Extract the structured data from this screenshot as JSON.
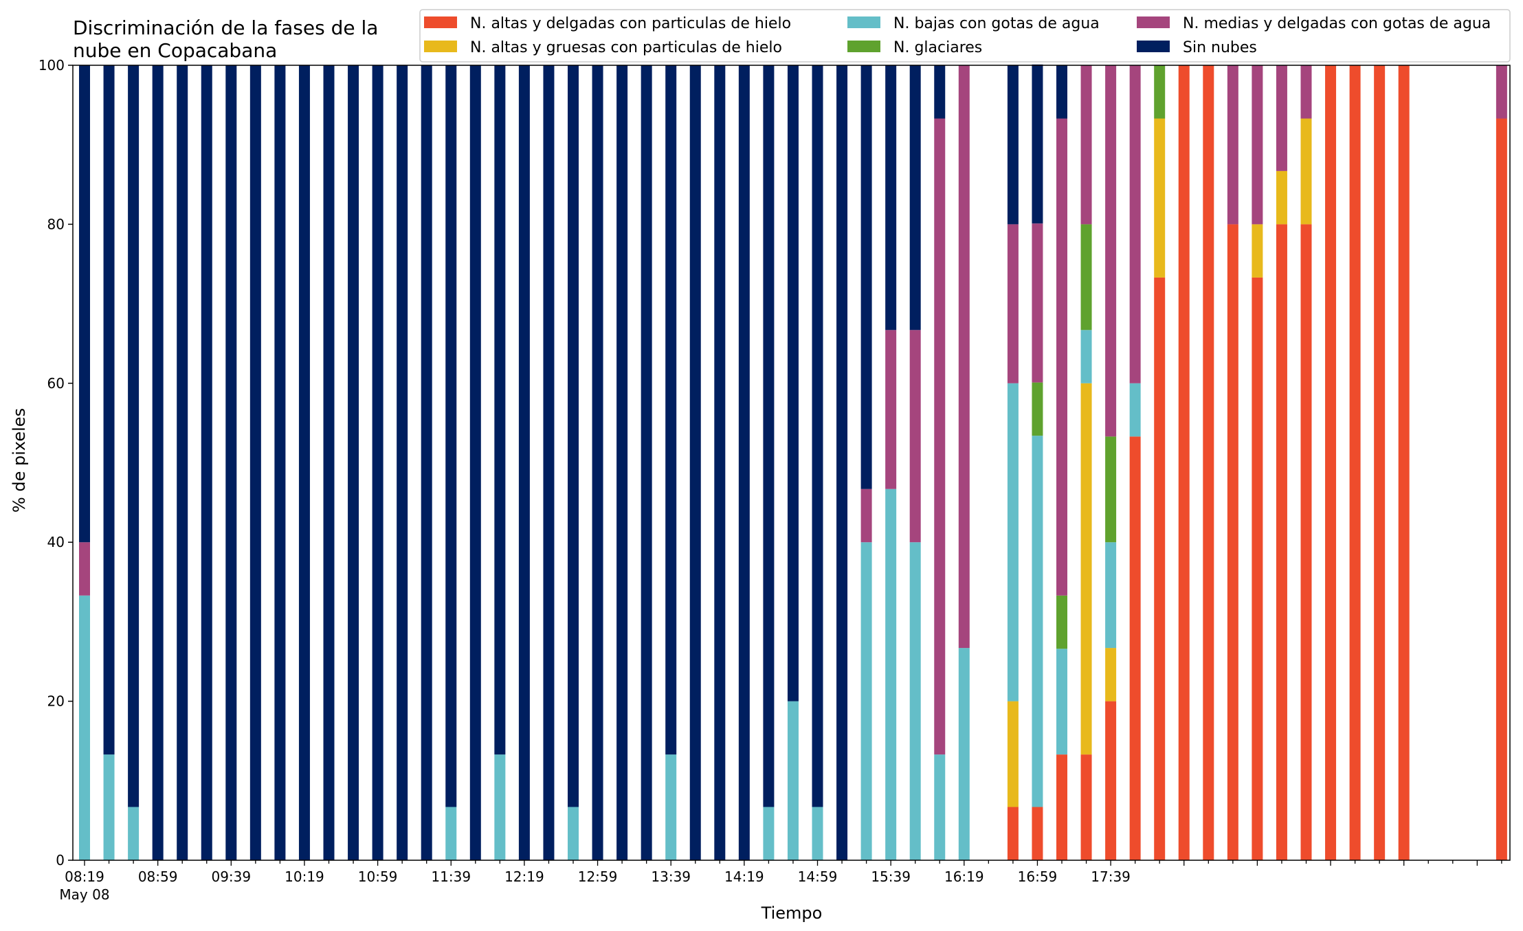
{
  "chart_data": {
    "type": "bar",
    "stacked": true,
    "title_line1": "Discriminación de la fases de la",
    "title_line2": "nube en Copacabana",
    "xlabel": "Tiempo",
    "ylabel": "% de pixeles",
    "ylim": [
      0,
      100
    ],
    "yticks": [
      "0",
      "20",
      "40",
      "60",
      "80",
      "100"
    ],
    "date_label": "May 08",
    "xtick_labels": [
      "08:19",
      "08:59",
      "09:39",
      "10:19",
      "10:59",
      "11:39",
      "12:19",
      "12:59",
      "13:39",
      "14:19",
      "14:59",
      "15:39",
      "16:19",
      "16:59",
      "17:39"
    ],
    "legend_placement": "top-right",
    "bars_per_hour": 3,
    "missing_bars": [
      55,
      56,
      57
    ],
    "series": [
      {
        "name": "N. altas y delgadas con particulas de hielo",
        "color": "#ee4c2c",
        "values": [
          0,
          0,
          0,
          0,
          0,
          0,
          0,
          0,
          0,
          0,
          0,
          0,
          0,
          0,
          0,
          0,
          0,
          0,
          0,
          0,
          0,
          0,
          0,
          0,
          0,
          0,
          0,
          0,
          0,
          0,
          0,
          0,
          0,
          0,
          0,
          0,
          0,
          0,
          6.7,
          6.7,
          13.3,
          13.3,
          20,
          53.3,
          73.3,
          100,
          100,
          80,
          73.3,
          80,
          80,
          100,
          100,
          100,
          100,
          0,
          0,
          0,
          93.3
        ]
      },
      {
        "name": "N. altas y gruesas con particulas de hielo",
        "color": "#e8b91c",
        "values": [
          0,
          0,
          0,
          0,
          0,
          0,
          0,
          0,
          0,
          0,
          0,
          0,
          0,
          0,
          0,
          0,
          0,
          0,
          0,
          0,
          0,
          0,
          0,
          0,
          0,
          0,
          0,
          0,
          0,
          0,
          0,
          0,
          0,
          0,
          0,
          0,
          0,
          0,
          13.3,
          0,
          0,
          46.7,
          6.7,
          0,
          20,
          0,
          0,
          0,
          6.7,
          6.7,
          13.3,
          0,
          0,
          0,
          0,
          0,
          0,
          0,
          0
        ]
      },
      {
        "name": "N. bajas con gotas de agua",
        "color": "#64bec8",
        "values": [
          33.3,
          13.3,
          6.7,
          0,
          0,
          0,
          0,
          0,
          0,
          0,
          0,
          0,
          0,
          0,
          0,
          6.7,
          0,
          13.3,
          0,
          0,
          6.7,
          0,
          0,
          0,
          13.3,
          0,
          0,
          0,
          6.7,
          20,
          6.7,
          0,
          40,
          46.7,
          40,
          13.3,
          26.7,
          0,
          40,
          46.7,
          13.3,
          6.7,
          13.3,
          6.7,
          0,
          0,
          0,
          0,
          0,
          0,
          0,
          0,
          0,
          0,
          0,
          0,
          0,
          0,
          0
        ]
      },
      {
        "name": "N. glaciares",
        "color": "#5fa22e",
        "values": [
          0,
          0,
          0,
          0,
          0,
          0,
          0,
          0,
          0,
          0,
          0,
          0,
          0,
          0,
          0,
          0,
          0,
          0,
          0,
          0,
          0,
          0,
          0,
          0,
          0,
          0,
          0,
          0,
          0,
          0,
          0,
          0,
          0,
          0,
          0,
          0,
          0,
          0,
          0,
          6.7,
          6.7,
          13.3,
          13.3,
          0,
          6.7,
          0,
          0,
          0,
          0,
          0,
          0,
          0,
          0,
          0,
          0,
          0,
          0,
          0,
          0
        ]
      },
      {
        "name": "N. medias y delgadas con gotas de agua",
        "color": "#a5457d",
        "values": [
          6.7,
          0,
          0,
          0,
          0,
          0,
          0,
          0,
          0,
          0,
          0,
          0,
          0,
          0,
          0,
          0,
          0,
          0,
          0,
          0,
          0,
          0,
          0,
          0,
          0,
          0,
          0,
          0,
          0,
          0,
          0,
          0,
          6.7,
          20,
          26.7,
          80,
          73.3,
          0,
          20,
          20,
          60,
          20,
          46.7,
          40,
          0,
          0,
          0,
          20,
          20,
          13.3,
          6.7,
          0,
          0,
          0,
          0,
          0,
          0,
          0,
          6.7
        ]
      },
      {
        "name": "Sin nubes",
        "color": "#001f5f",
        "values": [
          60,
          86.7,
          93.3,
          100,
          100,
          100,
          100,
          100,
          100,
          100,
          100,
          100,
          100,
          100,
          100,
          93.3,
          100,
          86.7,
          100,
          100,
          93.3,
          100,
          100,
          100,
          86.7,
          100,
          100,
          100,
          93.3,
          80,
          93.3,
          100,
          53.3,
          33.3,
          33.3,
          6.7,
          0,
          0,
          20,
          20,
          6.7,
          0,
          0,
          0,
          0,
          0,
          0,
          0,
          0,
          0,
          0,
          0,
          0,
          0,
          0,
          0,
          0,
          0,
          0
        ]
      }
    ]
  }
}
